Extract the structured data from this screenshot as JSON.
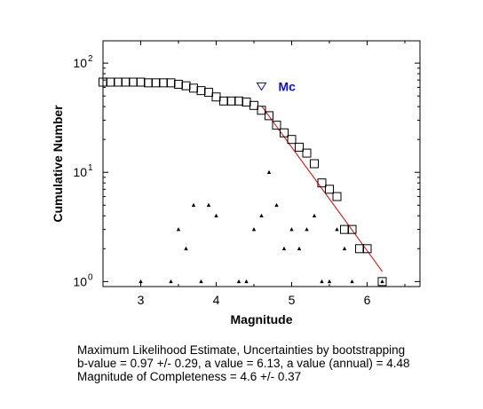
{
  "chart_data": {
    "type": "scatter",
    "xlabel": "Magnitude",
    "ylabel": "Cumulative Number",
    "xlim": [
      2.5,
      6.7
    ],
    "ylim": [
      0.9,
      160
    ],
    "yscale": "log",
    "x_ticks": [
      3,
      4,
      5,
      6
    ],
    "y_ticks": [
      {
        "value": 1,
        "base": "10",
        "exp": "0"
      },
      {
        "value": 10,
        "base": "10",
        "exp": "1"
      },
      {
        "value": 100,
        "base": "10",
        "exp": "2"
      }
    ],
    "series": [
      {
        "marker": "square",
        "x": [
          2.5,
          2.6,
          2.7,
          2.8,
          2.9,
          3.0,
          3.1,
          3.2,
          3.3,
          3.4,
          3.5,
          3.6,
          3.7,
          3.8,
          3.9,
          4.0,
          4.1,
          4.2,
          4.3,
          4.4,
          4.5,
          4.6,
          4.7,
          4.8,
          4.9,
          5.0,
          5.1,
          5.2,
          5.3,
          5.4,
          5.5,
          5.6,
          5.7,
          5.8,
          5.9,
          6.0,
          6.2
        ],
        "y": [
          67,
          67,
          67,
          67,
          67,
          67,
          66,
          66,
          66,
          66,
          64,
          62,
          59,
          56,
          54,
          49,
          45,
          45,
          45,
          44,
          41,
          37,
          33,
          27,
          23,
          20,
          17,
          15,
          12,
          8,
          7,
          6,
          3,
          3,
          2,
          2,
          1
        ]
      },
      {
        "marker": "triangle",
        "x": [
          3.0,
          3.4,
          3.5,
          3.6,
          3.7,
          3.8,
          3.9,
          4.0,
          4.3,
          4.4,
          4.5,
          4.6,
          4.7,
          4.8,
          4.9,
          5.0,
          5.1,
          5.2,
          5.3,
          5.4,
          5.5,
          5.6,
          5.7,
          5.8,
          6.2
        ],
        "y": [
          1,
          1,
          3,
          2,
          5,
          1,
          5,
          4,
          1,
          1,
          3,
          4,
          10,
          5,
          2,
          3,
          2,
          3,
          4,
          1,
          1,
          3,
          2,
          1,
          1
        ]
      },
      {
        "marker": "line",
        "color": "#e00000",
        "x": [
          4.6,
          4.8,
          5.0,
          5.2,
          5.4,
          5.6,
          5.8,
          6.0,
          6.2
        ],
        "y": [
          40.7,
          26.3,
          17.0,
          11.0,
          7.1,
          4.6,
          2.97,
          1.92,
          1.24
        ]
      }
    ],
    "annotations": [
      {
        "marker": "inverted-triangle",
        "x": 4.6,
        "y": 61,
        "color": "#1010c0",
        "label": "Mc"
      }
    ]
  },
  "caption": {
    "line1": "Maximum Likelihood Estimate, Uncertainties by bootstrapping",
    "line2": "b-value = 0.97 +/- 0.29,  a value = 6.13,  a value (annual) = 4.48",
    "line3": "Magnitude of Completeness = 4.6 +/- 0.37"
  }
}
